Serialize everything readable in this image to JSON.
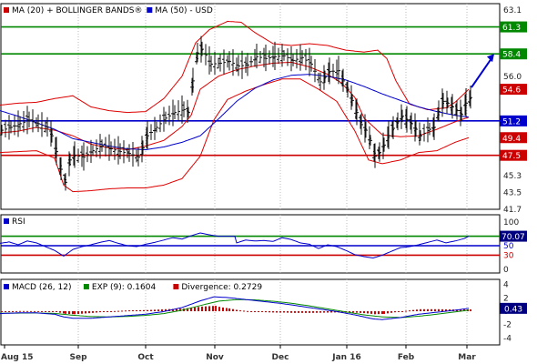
{
  "chart_data": [
    {
      "type": "line",
      "panel": "price",
      "legend": [
        {
          "label": "MA (20) + BOLLINGER BANDS®",
          "color": "#cc0000"
        },
        {
          "label": "MA (50) - USD",
          "color": "#0000cc"
        }
      ],
      "y_ticks": [
        "63.1",
        "61.3",
        "58.4",
        "56.0",
        "54.6",
        "51.2",
        "49.4",
        "47.5",
        "45.3",
        "43.5",
        "41.7"
      ],
      "ylim": [
        41.7,
        63.8
      ],
      "level_lines": [
        {
          "value": 61.3,
          "label": "61.3",
          "color": "#008800"
        },
        {
          "value": 58.4,
          "label": "58.4",
          "color": "#008800"
        },
        {
          "value": 51.2,
          "label": "51.2",
          "color": "#0000cc"
        },
        {
          "value": 47.5,
          "label": "47.5",
          "color": "#cc0000"
        }
      ],
      "badges": [
        {
          "value": 54.6,
          "label": "54.6",
          "color": "#cc0000"
        },
        {
          "value": 49.4,
          "label": "49.4",
          "color": "#cc0000"
        }
      ],
      "forecast_arrow": {
        "from": 54.8,
        "to": 58.4,
        "color": "#0000cc"
      },
      "price_anchors": [
        [
          0,
          50.2
        ],
        [
          10,
          50.5
        ],
        [
          20,
          50.9
        ],
        [
          30,
          51.3
        ],
        [
          40,
          50.9
        ],
        [
          50,
          50.5
        ],
        [
          55,
          49.6
        ],
        [
          60,
          47.9
        ],
        [
          65,
          46.0
        ],
        [
          70,
          44.6
        ],
        [
          75,
          47.0
        ],
        [
          80,
          47.5
        ],
        [
          90,
          47.3
        ],
        [
          100,
          48.0
        ],
        [
          110,
          48.5
        ],
        [
          120,
          48.2
        ],
        [
          130,
          47.9
        ],
        [
          140,
          47.7
        ],
        [
          150,
          47.3
        ],
        [
          155,
          48.3
        ],
        [
          160,
          49.6
        ],
        [
          170,
          50.5
        ],
        [
          180,
          51.5
        ],
        [
          190,
          52.1
        ],
        [
          200,
          52.4
        ],
        [
          205,
          52.1
        ],
        [
          210,
          55.5
        ],
        [
          215,
          58.5
        ],
        [
          220,
          58.9
        ],
        [
          230,
          57.3
        ],
        [
          240,
          57.4
        ],
        [
          250,
          57.6
        ],
        [
          260,
          57.1
        ],
        [
          270,
          57.2
        ],
        [
          280,
          58.1
        ],
        [
          290,
          57.9
        ],
        [
          300,
          58.1
        ],
        [
          310,
          58.2
        ],
        [
          320,
          57.7
        ],
        [
          330,
          58.0
        ],
        [
          340,
          57.3
        ],
        [
          350,
          55.4
        ],
        [
          355,
          55.9
        ],
        [
          360,
          56.5
        ],
        [
          370,
          56.6
        ],
        [
          375,
          55.5
        ],
        [
          380,
          54.6
        ],
        [
          385,
          53.4
        ],
        [
          390,
          52.1
        ],
        [
          395,
          50.8
        ],
        [
          400,
          50.2
        ],
        [
          405,
          49.1
        ],
        [
          410,
          47.4
        ],
        [
          415,
          47.8
        ],
        [
          420,
          48.6
        ],
        [
          425,
          49.6
        ],
        [
          430,
          50.4
        ],
        [
          435,
          51.1
        ],
        [
          440,
          51.7
        ],
        [
          445,
          51.3
        ],
        [
          450,
          50.9
        ],
        [
          455,
          50.3
        ],
        [
          460,
          49.6
        ],
        [
          470,
          50.3
        ],
        [
          475,
          50.5
        ],
        [
          480,
          52.2
        ],
        [
          485,
          53.3
        ],
        [
          490,
          53.1
        ],
        [
          495,
          52.7
        ],
        [
          500,
          52.3
        ],
        [
          505,
          51.9
        ],
        [
          510,
          53.1
        ],
        [
          515,
          53.7
        ]
      ],
      "ma20_anchors": [
        [
          0,
          49.9
        ],
        [
          20,
          50.1
        ],
        [
          40,
          50.5
        ],
        [
          60,
          50.2
        ],
        [
          80,
          49.6
        ],
        [
          100,
          48.7
        ],
        [
          120,
          48.3
        ],
        [
          140,
          48.1
        ],
        [
          160,
          48.5
        ],
        [
          180,
          49.1
        ],
        [
          200,
          50.6
        ],
        [
          210,
          51.8
        ],
        [
          220,
          54.6
        ],
        [
          240,
          56.0
        ],
        [
          260,
          56.7
        ],
        [
          280,
          57.1
        ],
        [
          300,
          57.4
        ],
        [
          320,
          57.5
        ],
        [
          340,
          57.0
        ],
        [
          360,
          56.2
        ],
        [
          375,
          55.3
        ],
        [
          390,
          53.7
        ],
        [
          400,
          51.5
        ],
        [
          420,
          49.7
        ],
        [
          440,
          49.5
        ],
        [
          460,
          49.6
        ],
        [
          480,
          50.3
        ],
        [
          500,
          51.1
        ],
        [
          515,
          51.6
        ]
      ],
      "bb_upper_anchors": [
        [
          0,
          52.9
        ],
        [
          20,
          53.1
        ],
        [
          40,
          53.2
        ],
        [
          60,
          53.6
        ],
        [
          80,
          53.9
        ],
        [
          100,
          52.7
        ],
        [
          120,
          52.3
        ],
        [
          140,
          52.1
        ],
        [
          160,
          52.2
        ],
        [
          180,
          53.6
        ],
        [
          200,
          56.0
        ],
        [
          215,
          59.6
        ],
        [
          230,
          61.0
        ],
        [
          250,
          61.9
        ],
        [
          265,
          61.8
        ],
        [
          280,
          60.7
        ],
        [
          300,
          59.5
        ],
        [
          320,
          59.3
        ],
        [
          340,
          59.5
        ],
        [
          360,
          59.3
        ],
        [
          380,
          58.8
        ],
        [
          400,
          58.6
        ],
        [
          415,
          58.8
        ],
        [
          425,
          57.9
        ],
        [
          435,
          55.5
        ],
        [
          450,
          53.0
        ],
        [
          470,
          52.4
        ],
        [
          490,
          52.6
        ],
        [
          500,
          53.2
        ],
        [
          515,
          54.6
        ]
      ],
      "bb_lower_anchors": [
        [
          0,
          47.8
        ],
        [
          20,
          47.9
        ],
        [
          40,
          48.0
        ],
        [
          60,
          47.2
        ],
        [
          70,
          44.3
        ],
        [
          80,
          43.6
        ],
        [
          100,
          43.7
        ],
        [
          120,
          43.9
        ],
        [
          140,
          44.0
        ],
        [
          160,
          44.0
        ],
        [
          180,
          44.3
        ],
        [
          200,
          45.0
        ],
        [
          220,
          47.4
        ],
        [
          235,
          51.3
        ],
        [
          250,
          53.5
        ],
        [
          270,
          54.4
        ],
        [
          290,
          55.1
        ],
        [
          310,
          55.7
        ],
        [
          330,
          55.7
        ],
        [
          350,
          54.6
        ],
        [
          370,
          53.3
        ],
        [
          390,
          50.1
        ],
        [
          405,
          47.0
        ],
        [
          420,
          46.6
        ],
        [
          440,
          47.0
        ],
        [
          460,
          47.8
        ],
        [
          480,
          48.0
        ],
        [
          500,
          48.9
        ],
        [
          515,
          49.4
        ]
      ],
      "ma50_anchors": [
        [
          0,
          52.3
        ],
        [
          20,
          51.7
        ],
        [
          40,
          51.0
        ],
        [
          60,
          50.3
        ],
        [
          80,
          49.3
        ],
        [
          100,
          48.9
        ],
        [
          120,
          48.5
        ],
        [
          140,
          48.2
        ],
        [
          160,
          48.1
        ],
        [
          180,
          48.4
        ],
        [
          200,
          48.9
        ],
        [
          220,
          49.6
        ],
        [
          240,
          51.4
        ],
        [
          260,
          53.3
        ],
        [
          280,
          54.7
        ],
        [
          300,
          55.6
        ],
        [
          320,
          56.1
        ],
        [
          340,
          56.2
        ],
        [
          360,
          56.0
        ],
        [
          380,
          55.6
        ],
        [
          400,
          54.9
        ],
        [
          420,
          54.1
        ],
        [
          440,
          53.4
        ],
        [
          460,
          52.7
        ],
        [
          480,
          52.2
        ],
        [
          500,
          51.8
        ],
        [
          515,
          51.6
        ]
      ]
    },
    {
      "type": "line",
      "panel": "rsi",
      "legend": [
        {
          "label": "RSI",
          "color": "#0000cc"
        }
      ],
      "y_ticks": [
        "100",
        "70",
        "50",
        "30",
        "0"
      ],
      "ylim": [
        0,
        100
      ],
      "level_lines": [
        {
          "value": 70,
          "color": "#008800"
        },
        {
          "value": 50,
          "color": "#0000cc"
        },
        {
          "value": 30,
          "color": "#cc0000"
        }
      ],
      "badge": {
        "value": 70.07,
        "label": "70.07",
        "color": "#000080"
      },
      "rsi_anchors": [
        [
          0,
          55
        ],
        [
          10,
          58
        ],
        [
          20,
          52
        ],
        [
          30,
          60
        ],
        [
          40,
          56
        ],
        [
          50,
          48
        ],
        [
          60,
          40
        ],
        [
          70,
          28
        ],
        [
          80,
          42
        ],
        [
          90,
          48
        ],
        [
          100,
          52
        ],
        [
          110,
          57
        ],
        [
          120,
          61
        ],
        [
          130,
          55
        ],
        [
          140,
          50
        ],
        [
          150,
          48
        ],
        [
          160,
          53
        ],
        [
          170,
          57
        ],
        [
          180,
          62
        ],
        [
          190,
          67
        ],
        [
          200,
          64
        ],
        [
          210,
          71
        ],
        [
          220,
          77
        ],
        [
          230,
          73
        ],
        [
          240,
          70
        ],
        [
          258,
          70
        ],
        [
          260,
          56
        ],
        [
          270,
          62
        ],
        [
          280,
          60
        ],
        [
          290,
          61
        ],
        [
          300,
          59
        ],
        [
          310,
          67
        ],
        [
          320,
          63
        ],
        [
          330,
          56
        ],
        [
          340,
          53
        ],
        [
          350,
          44
        ],
        [
          360,
          52
        ],
        [
          370,
          48
        ],
        [
          380,
          40
        ],
        [
          390,
          31
        ],
        [
          400,
          27
        ],
        [
          410,
          24
        ],
        [
          420,
          30
        ],
        [
          430,
          38
        ],
        [
          440,
          46
        ],
        [
          450,
          48
        ],
        [
          460,
          52
        ],
        [
          470,
          57
        ],
        [
          480,
          62
        ],
        [
          490,
          56
        ],
        [
          500,
          60
        ],
        [
          510,
          65
        ],
        [
          515,
          70
        ]
      ]
    },
    {
      "type": "line",
      "panel": "macd",
      "legend": [
        {
          "label": "MACD (26, 12)",
          "color": "#0000cc"
        },
        {
          "label": "EXP (9): 0.1604",
          "color": "#008800"
        },
        {
          "label": "Divergence: 0.2729",
          "color": "#cc0000"
        }
      ],
      "y_ticks": [
        "4",
        "2",
        "0",
        "-2",
        "-4"
      ],
      "ylim": [
        -4.5,
        4.5
      ],
      "badge": {
        "value": 0.43,
        "label": "0.43",
        "color": "#000080"
      },
      "macd_anchors": [
        [
          0,
          -0.35
        ],
        [
          20,
          -0.25
        ],
        [
          40,
          -0.25
        ],
        [
          60,
          -0.45
        ],
        [
          70,
          -0.85
        ],
        [
          80,
          -1.05
        ],
        [
          100,
          -1.05
        ],
        [
          120,
          -0.85
        ],
        [
          140,
          -0.65
        ],
        [
          160,
          -0.45
        ],
        [
          180,
          -0.05
        ],
        [
          200,
          0.55
        ],
        [
          220,
          1.55
        ],
        [
          235,
          2.15
        ],
        [
          250,
          2.05
        ],
        [
          270,
          1.75
        ],
        [
          290,
          1.45
        ],
        [
          310,
          1.15
        ],
        [
          330,
          0.75
        ],
        [
          350,
          0.35
        ],
        [
          370,
          -0.05
        ],
        [
          390,
          -0.55
        ],
        [
          410,
          -1.15
        ],
        [
          420,
          -1.25
        ],
        [
          440,
          -0.95
        ],
        [
          460,
          -0.45
        ],
        [
          480,
          -0.15
        ],
        [
          500,
          0.15
        ],
        [
          515,
          0.43
        ]
      ],
      "signal_anchors": [
        [
          0,
          -0.3
        ],
        [
          20,
          -0.28
        ],
        [
          40,
          -0.26
        ],
        [
          60,
          -0.33
        ],
        [
          80,
          -0.6
        ],
        [
          100,
          -0.8
        ],
        [
          120,
          -0.85
        ],
        [
          140,
          -0.78
        ],
        [
          160,
          -0.62
        ],
        [
          180,
          -0.35
        ],
        [
          200,
          0.15
        ],
        [
          220,
          0.85
        ],
        [
          240,
          1.5
        ],
        [
          260,
          1.75
        ],
        [
          280,
          1.7
        ],
        [
          300,
          1.5
        ],
        [
          320,
          1.2
        ],
        [
          340,
          0.8
        ],
        [
          360,
          0.35
        ],
        [
          380,
          -0.1
        ],
        [
          400,
          -0.55
        ],
        [
          420,
          -0.85
        ],
        [
          440,
          -0.95
        ],
        [
          460,
          -0.75
        ],
        [
          480,
          -0.45
        ],
        [
          500,
          -0.1
        ],
        [
          515,
          0.16
        ]
      ]
    }
  ],
  "x_axis": {
    "ticks": [
      {
        "label": "Aug 15",
        "at": 5
      },
      {
        "label": "Sep",
        "at": 86
      },
      {
        "label": "Oct",
        "at": 160
      },
      {
        "label": "Nov",
        "at": 236
      },
      {
        "label": "Dec",
        "at": 308
      },
      {
        "label": "Jan 16",
        "at": 381
      },
      {
        "label": "Feb",
        "at": 446
      },
      {
        "label": "Mar",
        "at": 513
      }
    ]
  }
}
